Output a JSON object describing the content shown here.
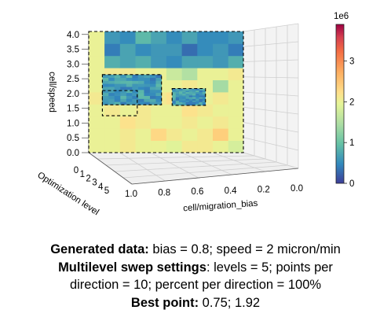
{
  "chart_data": {
    "type": "heatmap",
    "projection": "3d-view",
    "xlabel": "cell/migration_bias",
    "ylabel": "cell/speed",
    "zlabel": "Optimization level",
    "x_ticks": [
      "1.0",
      "0.8",
      "0.6",
      "0.4",
      "0.2",
      "0.0"
    ],
    "y_ticks": [
      "0.0",
      "0.5",
      "1.0",
      "1.5",
      "2.0",
      "2.5",
      "3.0",
      "3.5",
      "4.0"
    ],
    "z_ticks": [
      "0",
      "1",
      "2",
      "3",
      "4",
      "5"
    ],
    "xlim": [
      0,
      1
    ],
    "ylim": [
      0,
      4.1
    ],
    "colorbar": {
      "colormap": "Spectral_r",
      "range": [
        0,
        3900000
      ],
      "ticks": [
        "0",
        "1",
        "2",
        "3"
      ],
      "multiplier": "1e6"
    },
    "levels": [
      {
        "name": "level 0",
        "x_range": [
          0,
          1.02
        ],
        "y_range": [
          0,
          4.1
        ],
        "grid_cols": 10,
        "grid_rows": 10,
        "values_1e6": [
          [
            1.8,
            2.0,
            2.1,
            2.1,
            1.9,
            2.0,
            2.0,
            2.1,
            2.0,
            2.0
          ],
          [
            2.0,
            2.4,
            2.1,
            2.0,
            2.1,
            2.3,
            2.0,
            2.1,
            2.0,
            2.0
          ],
          [
            2.0,
            2.1,
            2.0,
            2.1,
            2.0,
            2.0,
            2.1,
            2.2,
            2.0,
            2.0
          ],
          [
            2.0,
            2.0,
            2.1,
            2.2,
            2.0,
            2.0,
            2.1,
            2.0,
            2.1,
            2.0
          ],
          [
            2.0,
            2.1,
            2.0,
            2.0,
            2.2,
            2.1,
            2.0,
            2.1,
            2.0,
            2.1
          ],
          [
            2.0,
            1.4,
            2.0,
            2.1,
            2.0,
            2.0,
            1.6,
            2.4,
            1.7,
            2.0
          ],
          [
            2.1,
            2.0,
            2.0,
            1.5,
            1.7,
            2.0,
            2.0,
            2.1,
            2.1,
            2.0
          ],
          [
            0.8,
            0.6,
            0.7,
            0.7,
            0.5,
            0.6,
            0.8,
            0.7,
            0.8,
            2.0
          ],
          [
            0.4,
            0.6,
            0.5,
            0.3,
            0.6,
            0.6,
            0.5,
            0.7,
            0.4,
            2.0
          ],
          [
            0.6,
            0.5,
            0.5,
            0.7,
            0.5,
            0.7,
            0.9,
            0.5,
            0.6,
            2.0
          ]
        ]
      },
      {
        "name": "level 1",
        "x_range": [
          0.54,
          0.93
        ],
        "y_range": [
          1.62,
          2.64
        ],
        "grid_cols": 10,
        "grid_rows": 10
      },
      {
        "name": "level 2",
        "x_range": [
          0.25,
          0.47
        ],
        "y_range": [
          1.6,
          2.17
        ],
        "grid_cols": 10,
        "grid_rows": 10
      }
    ]
  },
  "caption": {
    "generated_label": "Generated data:",
    "generated_text": "bias = 0.8; speed = 2 micron/min",
    "settings_label": "Multilevel swep settings",
    "settings_text_1": ": levels = 5; points per",
    "settings_text_2": "direction = 10; percent per direction = 100%",
    "best_label": "Best point:",
    "best_text": "0.75; 1.92"
  }
}
